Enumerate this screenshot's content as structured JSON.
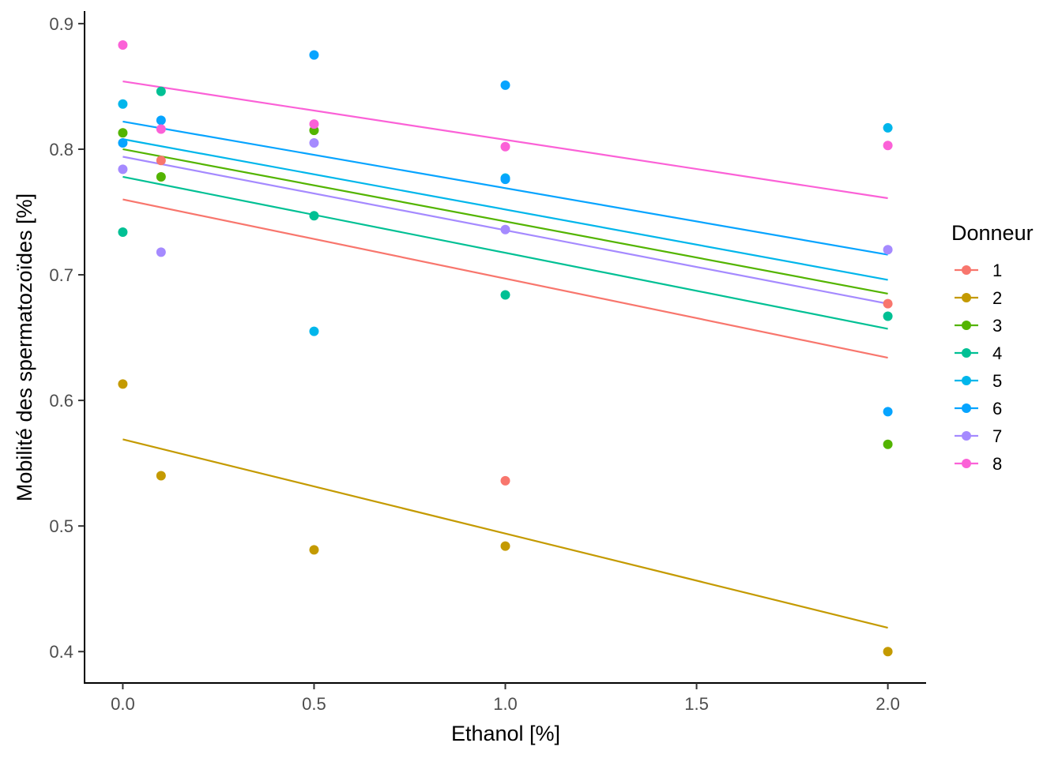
{
  "chart_data": {
    "type": "scatter",
    "xlabel": "Ethanol [%]",
    "ylabel": "Mobilité des spermatozoïdes [%]",
    "xlim": [
      -0.1,
      2.1
    ],
    "ylim": [
      0.375,
      0.91
    ],
    "x_ticks": [
      0.0,
      0.5,
      1.0,
      1.5,
      2.0
    ],
    "x_tick_labels": [
      "0.0",
      "0.5",
      "1.0",
      "1.5",
      "2.0"
    ],
    "y_ticks": [
      0.4,
      0.5,
      0.6,
      0.7,
      0.8,
      0.9
    ],
    "y_tick_labels": [
      "0.4",
      "0.5",
      "0.6",
      "0.7",
      "0.8",
      "0.9"
    ],
    "grid": false,
    "legend": {
      "title": "Donneur",
      "position": "right"
    },
    "series": [
      {
        "name": "1",
        "color": "#F8766D",
        "points": [
          [
            0.1,
            0.791
          ],
          [
            1.0,
            0.536
          ],
          [
            2.0,
            0.677
          ]
        ],
        "fit": [
          [
            0.0,
            0.76
          ],
          [
            2.0,
            0.634
          ]
        ]
      },
      {
        "name": "2",
        "color": "#C49A00",
        "points": [
          [
            0.0,
            0.613
          ],
          [
            0.1,
            0.54
          ],
          [
            0.5,
            0.481
          ],
          [
            1.0,
            0.484
          ],
          [
            2.0,
            0.4
          ]
        ],
        "fit": [
          [
            0.0,
            0.569
          ],
          [
            2.0,
            0.419
          ]
        ]
      },
      {
        "name": "3",
        "color": "#53B400",
        "points": [
          [
            0.0,
            0.813
          ],
          [
            0.1,
            0.778
          ],
          [
            0.5,
            0.815
          ],
          [
            2.0,
            0.565
          ]
        ],
        "fit": [
          [
            0.0,
            0.8
          ],
          [
            2.0,
            0.685
          ]
        ]
      },
      {
        "name": "4",
        "color": "#00C094",
        "points": [
          [
            0.0,
            0.734
          ],
          [
            0.1,
            0.846
          ],
          [
            0.5,
            0.747
          ],
          [
            1.0,
            0.684
          ],
          [
            2.0,
            0.667
          ]
        ],
        "fit": [
          [
            0.0,
            0.778
          ],
          [
            2.0,
            0.657
          ]
        ]
      },
      {
        "name": "5",
        "color": "#00B6EB",
        "points": [
          [
            0.0,
            0.836
          ],
          [
            0.5,
            0.655
          ],
          [
            1.0,
            0.777
          ],
          [
            2.0,
            0.817
          ]
        ],
        "fit": [
          [
            0.0,
            0.808
          ],
          [
            2.0,
            0.696
          ]
        ]
      },
      {
        "name": "6",
        "color": "#06A4FF",
        "points": [
          [
            0.0,
            0.805
          ],
          [
            0.1,
            0.823
          ],
          [
            0.5,
            0.875
          ],
          [
            1.0,
            0.851
          ],
          [
            1.0,
            0.776
          ],
          [
            2.0,
            0.591
          ]
        ],
        "fit": [
          [
            0.0,
            0.822
          ],
          [
            2.0,
            0.716
          ]
        ]
      },
      {
        "name": "7",
        "color": "#A58AFF",
        "points": [
          [
            0.0,
            0.784
          ],
          [
            0.1,
            0.718
          ],
          [
            0.5,
            0.805
          ],
          [
            1.0,
            0.736
          ],
          [
            2.0,
            0.72
          ]
        ],
        "fit": [
          [
            0.0,
            0.794
          ],
          [
            2.0,
            0.677
          ]
        ]
      },
      {
        "name": "8",
        "color": "#FB61D7",
        "points": [
          [
            0.0,
            0.883
          ],
          [
            0.1,
            0.816
          ],
          [
            0.5,
            0.82
          ],
          [
            1.0,
            0.802
          ],
          [
            2.0,
            0.803
          ]
        ],
        "fit": [
          [
            0.0,
            0.854
          ],
          [
            2.0,
            0.761
          ]
        ]
      }
    ]
  }
}
